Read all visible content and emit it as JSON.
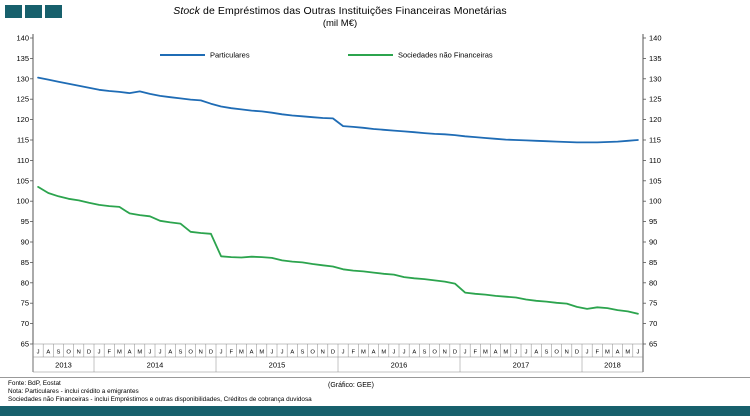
{
  "page": {
    "title_italic": "Stock",
    "title_rest": " de Empréstimos das Outras Instituições Financeiras Monetárias",
    "subtitle": "(mil M€)"
  },
  "colors": {
    "teal": "#17606c",
    "particulares": "#1f6cb5",
    "snf": "#2ca44e"
  },
  "footer": {
    "source": "Fonte: BdP, Eostat",
    "note1": "Nota: Particulares - inclui crédito a emigrantes",
    "note2": "Sociedades não Financeiras - inclui Empréstimos e outras disponibilidades, Créditos de cobrança duvidosa",
    "credit": "(Gráfico: GEE)"
  },
  "chart_data": {
    "type": "line",
    "title": "Stock de Empréstimos das Outras Instituições Financeiras Monetárias (mil M€)",
    "ylim": [
      65,
      140
    ],
    "ytick_step": 5,
    "y_ticks": [
      140,
      135,
      130,
      125,
      120,
      115,
      110,
      105,
      100,
      95,
      90,
      85,
      80,
      75,
      70,
      65
    ],
    "grid": false,
    "legend_position": "top-center",
    "month_labels": [
      "J",
      "A",
      "S",
      "O",
      "N",
      "D",
      "J",
      "F",
      "M",
      "A",
      "M",
      "J",
      "J",
      "A",
      "S",
      "O",
      "N",
      "D",
      "J",
      "F",
      "M",
      "A",
      "M",
      "J",
      "J",
      "A",
      "S",
      "O",
      "N",
      "D",
      "J",
      "F",
      "M",
      "A",
      "M",
      "J",
      "J",
      "A",
      "S",
      "O",
      "N",
      "D",
      "J",
      "F",
      "M",
      "A",
      "M",
      "J",
      "J",
      "A",
      "S",
      "O",
      "N",
      "D",
      "J",
      "F",
      "M",
      "A",
      "M",
      "J"
    ],
    "years": [
      {
        "label": "2013",
        "months": 6
      },
      {
        "label": "2014",
        "months": 12
      },
      {
        "label": "2015",
        "months": 12
      },
      {
        "label": "2016",
        "months": 12
      },
      {
        "label": "2017",
        "months": 12
      },
      {
        "label": "2018",
        "months": 6
      }
    ],
    "series": [
      {
        "name": "Particulares",
        "color": "#1f6cb5",
        "values": [
          130.3,
          129.8,
          129.3,
          128.8,
          128.3,
          127.8,
          127.3,
          127.0,
          126.8,
          126.5,
          126.9,
          126.3,
          125.8,
          125.5,
          125.2,
          124.9,
          124.7,
          123.9,
          123.2,
          122.8,
          122.5,
          122.2,
          122.0,
          121.7,
          121.3,
          121.0,
          120.8,
          120.6,
          120.4,
          120.3,
          118.4,
          118.2,
          118.0,
          117.7,
          117.5,
          117.3,
          117.1,
          116.9,
          116.7,
          116.5,
          116.4,
          116.2,
          115.9,
          115.7,
          115.5,
          115.3,
          115.1,
          115.0,
          114.9,
          114.8,
          114.7,
          114.6,
          114.5,
          114.4,
          114.4,
          114.4,
          114.5,
          114.6,
          114.8,
          115.0
        ]
      },
      {
        "name": "Sociedades não Financeiras",
        "color": "#2ca44e",
        "values": [
          103.5,
          102.0,
          101.2,
          100.6,
          100.2,
          99.6,
          99.1,
          98.8,
          98.6,
          97.0,
          96.6,
          96.3,
          95.2,
          94.8,
          94.5,
          92.5,
          92.2,
          92.0,
          86.5,
          86.3,
          86.2,
          86.4,
          86.3,
          86.1,
          85.5,
          85.2,
          85.0,
          84.6,
          84.3,
          84.0,
          83.3,
          83.0,
          82.8,
          82.5,
          82.2,
          82.0,
          81.4,
          81.1,
          80.9,
          80.6,
          80.3,
          79.8,
          77.6,
          77.3,
          77.1,
          76.8,
          76.6,
          76.4,
          75.9,
          75.6,
          75.4,
          75.1,
          74.9,
          74.1,
          73.6,
          74.0,
          73.8,
          73.3,
          73.0,
          72.4
        ]
      }
    ]
  }
}
